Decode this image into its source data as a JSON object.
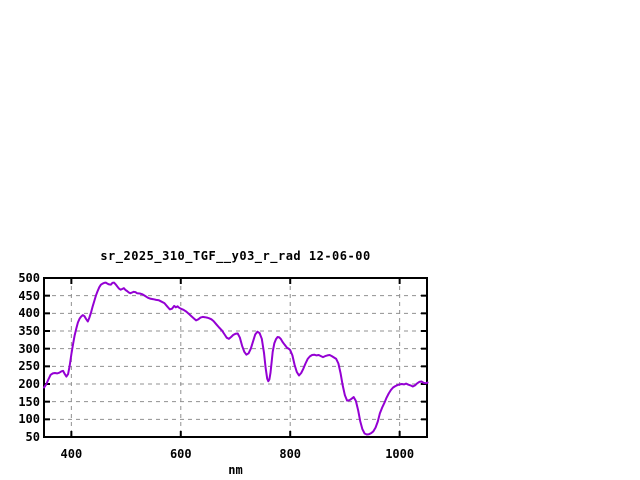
{
  "title": "sr_2025_310_TGF__y03_r_rad 12-06-00",
  "colors": {
    "background": "#ffffff",
    "line": "#9400d3",
    "grid": "#909090",
    "axis": "#000000"
  },
  "chart_data": {
    "type": "line",
    "title": "sr_2025_310_TGF__y03_r_rad 12-06-00",
    "xlabel": "nm",
    "ylabel": "",
    "xlim": [
      350,
      1050
    ],
    "ylim": [
      50,
      500
    ],
    "x_ticks": [
      400,
      600,
      800,
      1000
    ],
    "y_ticks": [
      50,
      100,
      150,
      200,
      250,
      300,
      350,
      400,
      450,
      500
    ],
    "grid": true,
    "grid_style": "dashed",
    "legend": "none",
    "line_color": "#9400d3",
    "series": [
      {
        "name": "sr_2025_310_TGF__y03_r_rad",
        "x": [
          350,
          354,
          358,
          362,
          366,
          370,
          374,
          378,
          382,
          385,
          388,
          391,
          394,
          397,
          400,
          403,
          406,
          409,
          412,
          415,
          418,
          421,
          424,
          427,
          430,
          433,
          436,
          439,
          442,
          445,
          448,
          451,
          454,
          457,
          460,
          463,
          466,
          469,
          472,
          475,
          478,
          481,
          484,
          487,
          490,
          493,
          496,
          499,
          502,
          505,
          508,
          511,
          514,
          517,
          520,
          525,
          530,
          535,
          540,
          545,
          550,
          555,
          560,
          565,
          570,
          575,
          580,
          584,
          588,
          591,
          594,
          597,
          600,
          605,
          610,
          615,
          620,
          625,
          628,
          632,
          636,
          640,
          644,
          648,
          652,
          656,
          660,
          665,
          670,
          675,
          680,
          684,
          688,
          692,
          696,
          700,
          704,
          708,
          712,
          716,
          720,
          724,
          728,
          732,
          736,
          740,
          744,
          748,
          752,
          755,
          758,
          760,
          762,
          764,
          766,
          768,
          771,
          774,
          777,
          780,
          783,
          786,
          790,
          794,
          798,
          800,
          804,
          808,
          812,
          816,
          820,
          824,
          828,
          832,
          836,
          840,
          844,
          848,
          852,
          856,
          860,
          864,
          868,
          872,
          876,
          880,
          884,
          888,
          892,
          896,
          900,
          904,
          908,
          912,
          916,
          920,
          924,
          928,
          932,
          936,
          940,
          944,
          948,
          952,
          956,
          960,
          964,
          968,
          972,
          976,
          980,
          984,
          988,
          992,
          996,
          1000,
          1004,
          1008,
          1012,
          1016,
          1020,
          1024,
          1028,
          1032,
          1036,
          1040,
          1044,
          1048,
          1051
        ],
        "y": [
          190,
          199,
          213,
          226,
          230,
          231,
          230,
          232,
          236,
          237,
          228,
          221,
          228,
          252,
          285,
          312,
          337,
          357,
          374,
          385,
          391,
          395,
          392,
          384,
          377,
          388,
          403,
          420,
          435,
          451,
          463,
          474,
          481,
          484,
          486,
          487,
          484,
          482,
          481,
          486,
          487,
          482,
          476,
          470,
          467,
          469,
          471,
          466,
          463,
          459,
          457,
          459,
          461,
          460,
          457,
          456,
          454,
          449,
          444,
          441,
          440,
          438,
          437,
          433,
          429,
          420,
          411,
          413,
          421,
          417,
          420,
          416,
          413,
          410,
          405,
          398,
          391,
          384,
          380,
          383,
          388,
          390,
          389,
          388,
          386,
          383,
          378,
          369,
          360,
          352,
          340,
          331,
          328,
          333,
          339,
          342,
          343,
          331,
          308,
          291,
          283,
          287,
          300,
          320,
          340,
          348,
          344,
          328,
          288,
          246,
          215,
          208,
          213,
          232,
          261,
          291,
          315,
          327,
          333,
          332,
          327,
          319,
          311,
          303,
          299,
          296,
          281,
          254,
          234,
          224,
          231,
          243,
          258,
          271,
          278,
          282,
          283,
          281,
          282,
          279,
          276,
          279,
          281,
          282,
          279,
          275,
          271,
          258,
          230,
          196,
          168,
          153,
          154,
          158,
          163,
          152,
          126,
          95,
          72,
          60,
          57,
          58,
          61,
          66,
          77,
          94,
          117,
          133,
          146,
          161,
          173,
          183,
          190,
          194,
          197,
          199,
          200,
          199,
          201,
          198,
          196,
          193,
          196,
          202,
          206,
          207,
          203,
          202,
          204
        ]
      }
    ]
  }
}
